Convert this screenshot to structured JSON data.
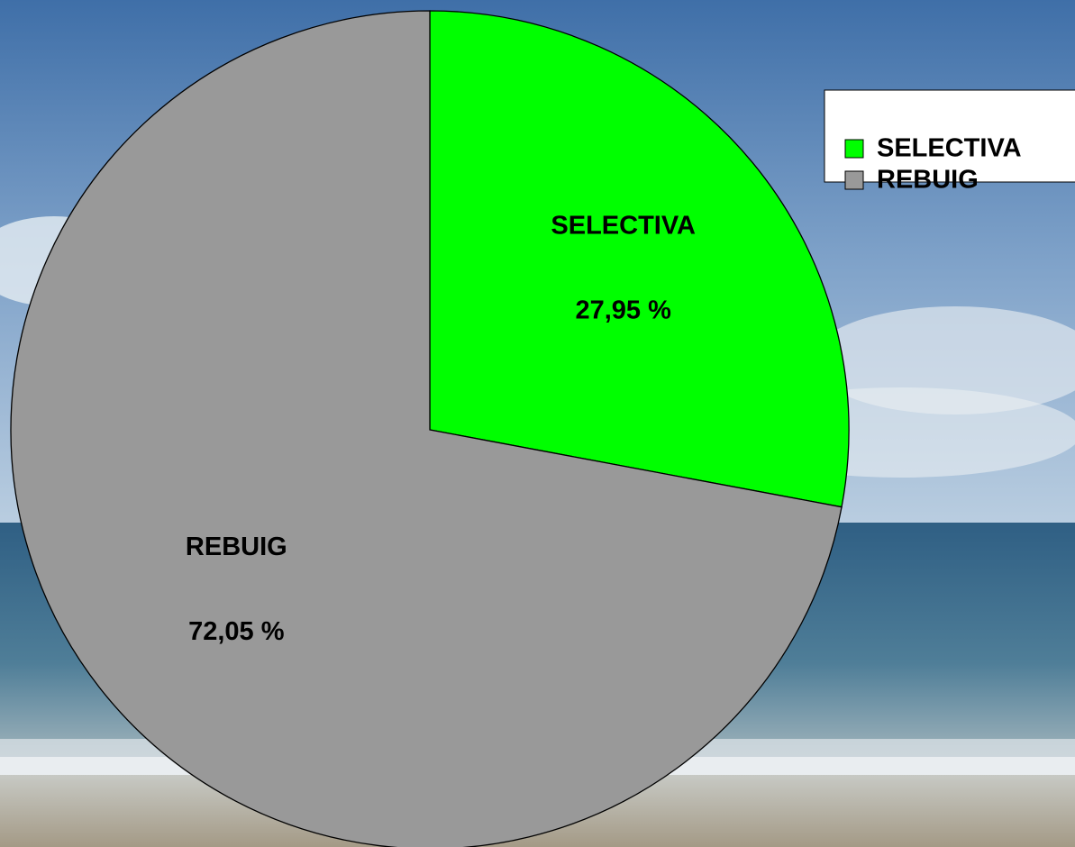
{
  "chart_data": {
    "type": "pie",
    "categories": [
      "SELECTIVA",
      "REBUIG"
    ],
    "values": [
      27.95,
      72.05
    ],
    "value_labels": [
      "27,95 %",
      "72,05 %"
    ],
    "colors": [
      "#00ff00",
      "#999999"
    ],
    "legend": "upper right"
  }
}
